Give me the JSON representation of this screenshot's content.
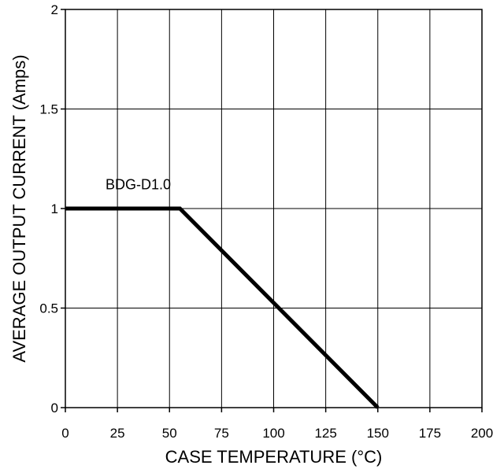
{
  "chart_data": {
    "type": "line",
    "title": "",
    "xlabel": "CASE TEMPERATURE (°C)",
    "ylabel": "AVERAGE OUTPUT CURRENT (Amps)",
    "xlim": [
      0,
      200
    ],
    "ylim": [
      0,
      2
    ],
    "x_ticks": [
      0,
      25,
      50,
      75,
      100,
      125,
      150,
      175,
      200
    ],
    "x_tick_labels": [
      "0",
      "25",
      "50",
      "75",
      "100",
      "125",
      "150",
      "175",
      "200"
    ],
    "y_ticks": [
      0,
      0.5,
      1,
      1.5,
      2
    ],
    "y_tick_labels": [
      "0",
      "0.5",
      "1",
      "1.5",
      "2"
    ],
    "grid": true,
    "series": [
      {
        "name": "BDG-D1.0",
        "x": [
          0,
          55,
          150
        ],
        "y": [
          1,
          1,
          0
        ]
      }
    ],
    "annotations": [
      {
        "text": "BDG-D1.0",
        "x": 35,
        "y": 1.12
      }
    ],
    "colors": {
      "line": "#000000",
      "grid": "#000000",
      "background": "#ffffff"
    }
  }
}
